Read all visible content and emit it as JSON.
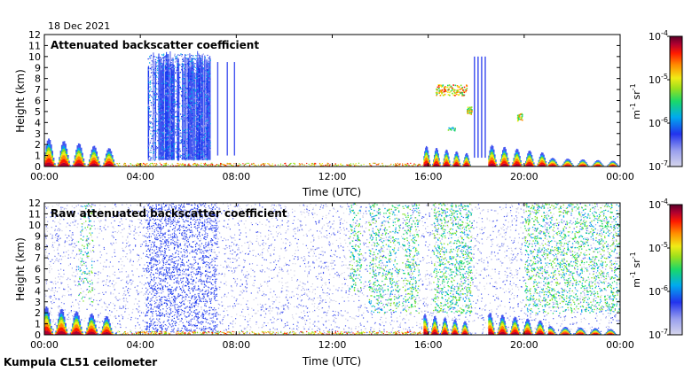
{
  "date": "18 Dec 2021",
  "footer": "Kumpula CL51 ceilometer",
  "colors": {
    "frame": "#000000",
    "colormap": [
      "#cfd0e6",
      "#9aa0ee",
      "#4455f0",
      "#1133ee",
      "#00a8e8",
      "#19d86a",
      "#7ee01c",
      "#f0ec16",
      "#ff8c00",
      "#ff1a00",
      "#b00030",
      "#600020"
    ]
  },
  "colorbar": {
    "ticks": [
      {
        "exp": "-4",
        "value": 0.0001
      },
      {
        "exp": "-5",
        "value": 1e-05
      },
      {
        "exp": "-6",
        "value": 1e-06
      },
      {
        "exp": "-7",
        "value": 1e-07
      }
    ],
    "unit_m": "m",
    "unit_m_exp": "-1",
    "unit_sr": "sr",
    "unit_sr_exp": "-1"
  },
  "chart_data": [
    {
      "type": "heatmap",
      "title": "Attenuated backscatter coefficient",
      "xlabel": "Time (UTC)",
      "ylabel": "Height (km)",
      "x_ticks": [
        "00:00",
        "04:00",
        "08:00",
        "12:00",
        "16:00",
        "20:00",
        "00:00"
      ],
      "y_ticks": [
        "0",
        "1",
        "2",
        "3",
        "4",
        "5",
        "6",
        "7",
        "8",
        "9",
        "10",
        "11",
        "12"
      ],
      "xlim": [
        0,
        24
      ],
      "ylim": [
        0,
        12
      ],
      "color_scale": "log",
      "color_range": [
        1e-07,
        0.0001
      ],
      "features": [
        {
          "name": "boundary layer aerosol",
          "t": [
            0,
            3
          ],
          "h": [
            0,
            3
          ]
        },
        {
          "name": "tall profiles",
          "t": [
            4.3,
            7.0
          ],
          "h": [
            0.5,
            10.5
          ]
        },
        {
          "name": "mid-level cloud patches",
          "t": [
            16.3,
            17.7
          ],
          "h": [
            4.5,
            7.5
          ]
        },
        {
          "name": "tall profiles",
          "t": [
            17.9,
            18.4
          ],
          "h": [
            0.5,
            10
          ]
        },
        {
          "name": "low cloud layer",
          "t": [
            18.5,
            21
          ],
          "h": [
            0,
            2
          ]
        },
        {
          "name": "surface layer",
          "t": [
            21,
            24
          ],
          "h": [
            0,
            0.7
          ]
        }
      ]
    },
    {
      "type": "heatmap",
      "title": "Raw attenuated backscatter coefficient",
      "xlabel": "Time (UTC)",
      "ylabel": "Height (km)",
      "x_ticks": [
        "00:00",
        "04:00",
        "08:00",
        "12:00",
        "16:00",
        "20:00",
        "00:00"
      ],
      "y_ticks": [
        "0",
        "1",
        "2",
        "3",
        "4",
        "5",
        "6",
        "7",
        "8",
        "9",
        "10",
        "11",
        "12"
      ],
      "xlim": [
        0,
        24
      ],
      "ylim": [
        0,
        12
      ],
      "color_scale": "log",
      "color_range": [
        1e-07,
        0.0001
      ],
      "features": [
        {
          "name": "noise background",
          "t": [
            0,
            24
          ],
          "h": [
            0,
            12
          ]
        },
        {
          "name": "boundary layer aerosol",
          "t": [
            0,
            3
          ],
          "h": [
            0,
            3
          ]
        },
        {
          "name": "low cloud layer",
          "t": [
            18.5,
            21
          ],
          "h": [
            0,
            2
          ]
        },
        {
          "name": "noisy green region",
          "t": [
            20,
            24
          ],
          "h": [
            2,
            12
          ]
        }
      ]
    }
  ]
}
